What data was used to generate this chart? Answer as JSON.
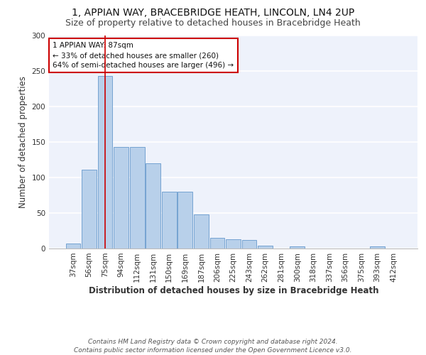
{
  "title_line1": "1, APPIAN WAY, BRACEBRIDGE HEATH, LINCOLN, LN4 2UP",
  "title_line2": "Size of property relative to detached houses in Bracebridge Heath",
  "xlabel": "Distribution of detached houses by size in Bracebridge Heath",
  "ylabel": "Number of detached properties",
  "categories": [
    "37sqm",
    "56sqm",
    "75sqm",
    "94sqm",
    "112sqm",
    "131sqm",
    "150sqm",
    "169sqm",
    "187sqm",
    "206sqm",
    "225sqm",
    "243sqm",
    "262sqm",
    "281sqm",
    "300sqm",
    "318sqm",
    "337sqm",
    "356sqm",
    "375sqm",
    "393sqm",
    "412sqm"
  ],
  "values": [
    7,
    111,
    243,
    143,
    143,
    120,
    80,
    80,
    48,
    15,
    13,
    12,
    4,
    0,
    3,
    0,
    0,
    0,
    0,
    3,
    0
  ],
  "bar_color": "#b8d0ea",
  "bar_edge_color": "#6699cc",
  "background_color": "#eef2fb",
  "grid_color": "#ffffff",
  "annotation_text": "1 APPIAN WAY: 87sqm\n← 33% of detached houses are smaller (260)\n64% of semi-detached houses are larger (496) →",
  "annotation_box_color": "#ffffff",
  "annotation_box_edge": "#cc0000",
  "vline_color": "#cc0000",
  "ylim": [
    0,
    300
  ],
  "yticks": [
    0,
    50,
    100,
    150,
    200,
    250,
    300
  ],
  "footer_line1": "Contains HM Land Registry data © Crown copyright and database right 2024.",
  "footer_line2": "Contains public sector information licensed under the Open Government Licence v3.0.",
  "title_fontsize": 10,
  "subtitle_fontsize": 9,
  "axis_label_fontsize": 8.5,
  "tick_fontsize": 7.5,
  "annotation_fontsize": 7.5,
  "footer_fontsize": 6.5
}
